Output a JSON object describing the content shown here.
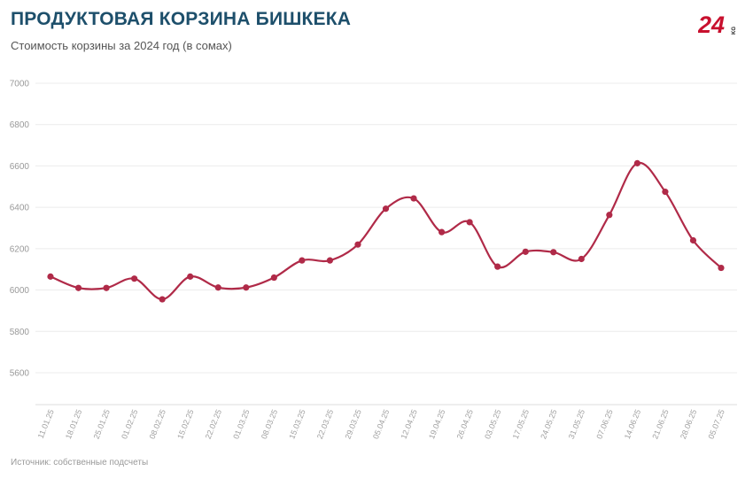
{
  "header": {
    "title": "ПРОДУКТОВАЯ КОРЗИНА БИШКЕКА",
    "subtitle": "Стоимость корзины за 2024 год (в сомах)"
  },
  "logo": {
    "text": "24",
    "suffix": "KG",
    "icon": "24kg-logo"
  },
  "footer": {
    "source": "Источник: собственные подсчеты"
  },
  "colors": {
    "line": "#b02a48",
    "grid": "#ececec",
    "title": "#1d4f6b",
    "logo": "#c8102e"
  },
  "chart_data": {
    "type": "line",
    "title": "ПРОДУКТОВАЯ КОРЗИНА БИШКЕКА",
    "subtitle": "Стоимость корзины за 2024 год (в сомах)",
    "xlabel": "",
    "ylabel": "",
    "ylim": [
      5450,
      7000
    ],
    "yticks": [
      5600,
      5800,
      6000,
      6200,
      6400,
      6600,
      6800,
      7000
    ],
    "grid": true,
    "legend": "none",
    "smooth": true,
    "categories": [
      "11.01.25",
      "18.01.25",
      "25.01.25",
      "01.02.25",
      "08.02.25",
      "15.02.25",
      "22.02.25",
      "01.03.25",
      "08.03.25",
      "15.03.25",
      "22.03.25",
      "29.03.25",
      "05.04.25",
      "12.04.25",
      "19.04.25",
      "26.04.25",
      "03.05.25",
      "17.05.25",
      "24.05.25",
      "31.05.25",
      "07.06.25",
      "14.06.25",
      "21.06.25",
      "28.06.25",
      "05.07.25"
    ],
    "series": [
      {
        "values": [
          6065,
          6010,
          6010,
          6055,
          5955,
          6065,
          6012,
          6012,
          6060,
          6143,
          6143,
          6220,
          6393,
          6443,
          6280,
          6328,
          6113,
          6185,
          6183,
          6150,
          6363,
          6613,
          6475,
          6240,
          6107
        ]
      }
    ]
  }
}
